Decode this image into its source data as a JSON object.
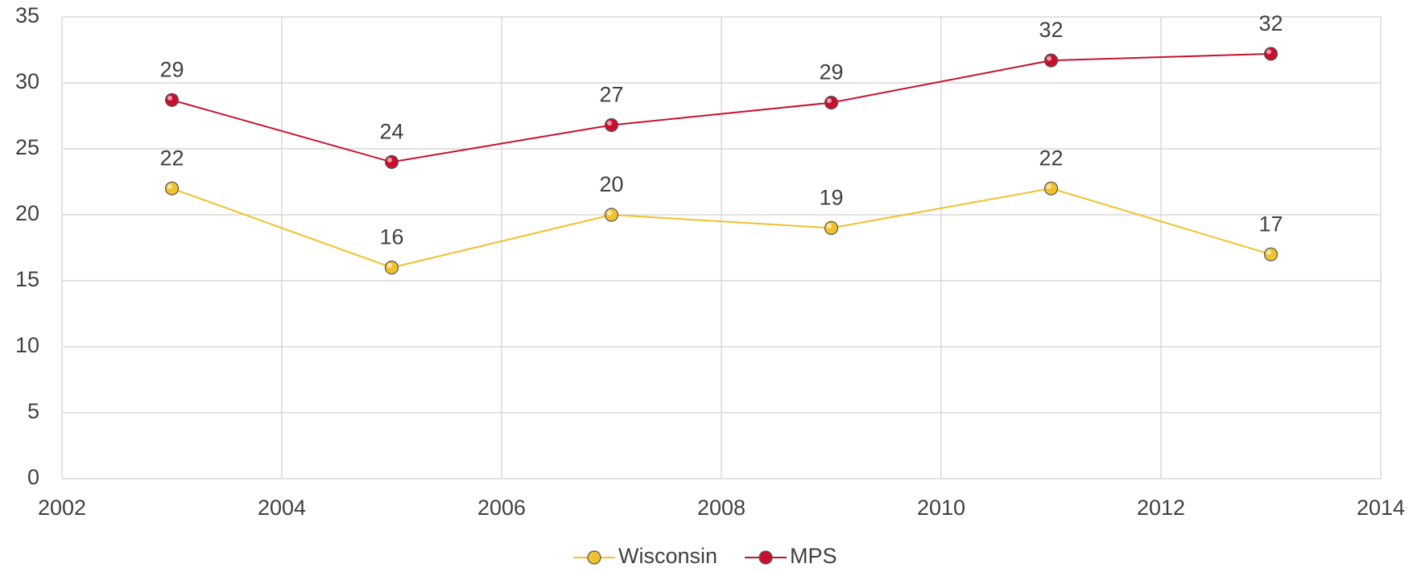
{
  "chart_data": {
    "type": "line",
    "x": [
      2003,
      2005,
      2007,
      2009,
      2011,
      2013
    ],
    "series": [
      {
        "name": "Wisconsin",
        "color": "#f2c12e",
        "values": [
          22,
          16,
          20,
          19,
          22,
          17
        ]
      },
      {
        "name": "MPS",
        "color": "#c8102e",
        "values": [
          28.7,
          24,
          26.8,
          28.5,
          31.7,
          32.2
        ],
        "value_labels": [
          "29",
          "24",
          "27",
          "29",
          "32",
          "32"
        ]
      }
    ],
    "xlim": [
      2002,
      2014
    ],
    "xticks": [
      2002,
      2004,
      2006,
      2008,
      2010,
      2012,
      2014
    ],
    "ylim": [
      0,
      35
    ],
    "yticks": [
      0,
      5,
      10,
      15,
      20,
      25,
      30,
      35
    ],
    "grid": true,
    "legend": "bottom"
  }
}
